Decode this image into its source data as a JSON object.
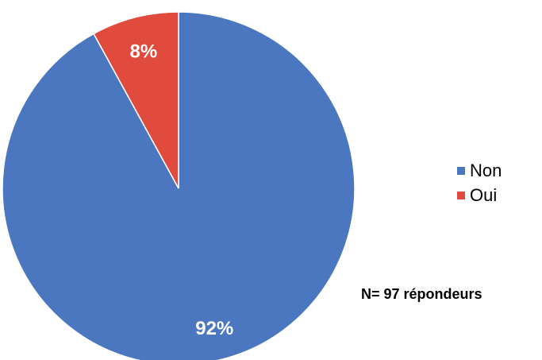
{
  "chart_data": {
    "type": "pie",
    "categories": [
      "Non",
      "Oui"
    ],
    "values": [
      92,
      8
    ],
    "data_labels": [
      "92%",
      "8%"
    ],
    "colors": [
      "#4a77bf",
      "#e04b3d"
    ],
    "legend": [
      "Non",
      "Oui"
    ],
    "legend_position": "right",
    "start_angle_deg": 0,
    "direction": "clockwise"
  },
  "note": "N= 97 répondeurs"
}
